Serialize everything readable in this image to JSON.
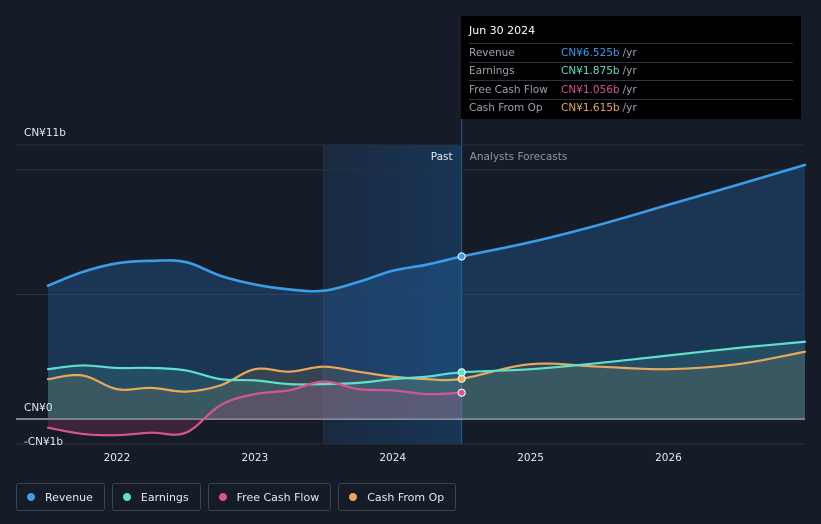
{
  "tooltip": {
    "date": "Jun 30 2024",
    "rows": [
      {
        "label": "Revenue",
        "value": "CN¥6.525b",
        "unit": "/yr",
        "color": "#3b9ce8"
      },
      {
        "label": "Earnings",
        "value": "CN¥1.875b",
        "unit": "/yr",
        "color": "#5fe0cf"
      },
      {
        "label": "Free Cash Flow",
        "value": "CN¥1.056b",
        "unit": "/yr",
        "color": "#d6558f"
      },
      {
        "label": "Cash From Op",
        "value": "CN¥1.615b",
        "unit": "/yr",
        "color": "#e8a95b"
      }
    ]
  },
  "legend": [
    {
      "label": "Revenue",
      "color": "#3b9ce8"
    },
    {
      "label": "Earnings",
      "color": "#5fe0cf"
    },
    {
      "label": "Free Cash Flow",
      "color": "#d6558f"
    },
    {
      "label": "Cash From Op",
      "color": "#e8a95b"
    }
  ],
  "chart_data": {
    "type": "line",
    "title": "",
    "xlabel": "",
    "ylabel": "",
    "y_top_label": "CN¥11b",
    "y_zero_label": "CN¥0",
    "y_neg_label": "-CN¥1b",
    "ylim": [
      -1,
      11
    ],
    "xlim": [
      2021.5,
      2026.99
    ],
    "x_ticks": [
      2022,
      2023,
      2024,
      2025,
      2026
    ],
    "x_tick_labels": [
      "2022",
      "2023",
      "2024",
      "2025",
      "2026"
    ],
    "past_label": "Past",
    "forecast_label": "Analysts Forecasts",
    "forecast_start": 2024.5,
    "highlight_start": 2023.5,
    "colors": {
      "revenue": "#3b9ce8",
      "earnings": "#5fe0cf",
      "fcf": "#d6558f",
      "cfo": "#e8a95b"
    },
    "series": [
      {
        "name": "Revenue",
        "key": "revenue",
        "x": [
          2021.5,
          2021.75,
          2022.0,
          2022.25,
          2022.5,
          2022.75,
          2023.0,
          2023.25,
          2023.5,
          2023.75,
          2024.0,
          2024.25,
          2024.5,
          2025.0,
          2025.5,
          2026.0,
          2026.5,
          2026.99
        ],
        "y": [
          5.35,
          5.9,
          6.25,
          6.35,
          6.3,
          5.75,
          5.4,
          5.2,
          5.15,
          5.5,
          5.95,
          6.2,
          6.525,
          7.1,
          7.8,
          8.6,
          9.4,
          10.2
        ]
      },
      {
        "name": "Earnings",
        "key": "earnings",
        "x": [
          2021.5,
          2021.75,
          2022.0,
          2022.25,
          2022.5,
          2022.75,
          2023.0,
          2023.25,
          2023.5,
          2023.75,
          2024.0,
          2024.25,
          2024.5,
          2025.0,
          2025.5,
          2026.0,
          2026.5,
          2026.99
        ],
        "y": [
          2.0,
          2.15,
          2.05,
          2.05,
          1.95,
          1.6,
          1.55,
          1.4,
          1.4,
          1.45,
          1.6,
          1.7,
          1.875,
          2.0,
          2.25,
          2.55,
          2.85,
          3.1
        ]
      },
      {
        "name": "Free Cash Flow",
        "key": "fcf",
        "x": [
          2021.5,
          2021.75,
          2022.0,
          2022.25,
          2022.5,
          2022.75,
          2023.0,
          2023.25,
          2023.5,
          2023.75,
          2024.0,
          2024.25,
          2024.5
        ],
        "y": [
          -0.35,
          -0.6,
          -0.65,
          -0.55,
          -0.55,
          0.55,
          1.0,
          1.15,
          1.5,
          1.2,
          1.15,
          1.0,
          1.056
        ]
      },
      {
        "name": "Cash From Op",
        "key": "cfo",
        "x": [
          2021.5,
          2021.75,
          2022.0,
          2022.25,
          2022.5,
          2022.75,
          2023.0,
          2023.25,
          2023.5,
          2023.75,
          2024.0,
          2024.25,
          2024.5,
          2025.0,
          2025.5,
          2026.0,
          2026.5,
          2026.99
        ],
        "y": [
          1.6,
          1.75,
          1.2,
          1.25,
          1.1,
          1.35,
          2.0,
          1.9,
          2.1,
          1.9,
          1.7,
          1.6,
          1.615,
          2.2,
          2.1,
          2.0,
          2.2,
          2.7
        ]
      }
    ]
  }
}
